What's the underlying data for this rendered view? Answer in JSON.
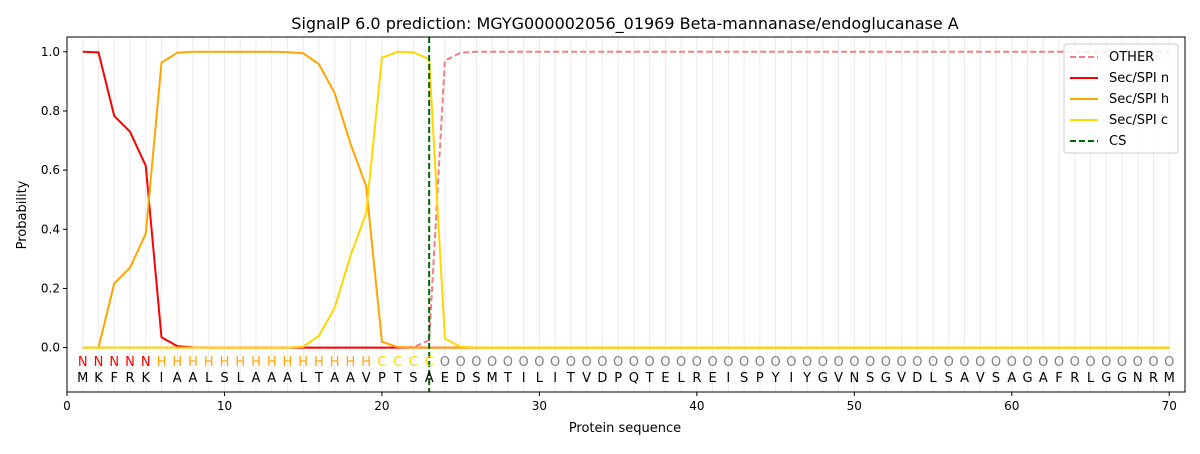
{
  "chart_data": {
    "type": "line",
    "title": "SignalP 6.0 prediction: MGYG000002056_01969 Beta-mannanase/endoglucanase A",
    "xlabel": "Protein sequence",
    "ylabel": "Probability",
    "xlim": [
      0,
      71
    ],
    "ylim": [
      -0.15,
      1.05
    ],
    "xticks": [
      0,
      10,
      20,
      30,
      40,
      50,
      60,
      70
    ],
    "yticks": [
      "0.0",
      "0.2",
      "0.4",
      "0.6",
      "0.8",
      "1.0"
    ],
    "legend_position": "top-right",
    "sequence": [
      "M",
      "K",
      "F",
      "R",
      "K",
      "I",
      "A",
      "A",
      "L",
      "S",
      "L",
      "A",
      "A",
      "A",
      "L",
      "T",
      "A",
      "A",
      "V",
      "P",
      "T",
      "S",
      "A",
      "E",
      "D",
      "S",
      "M",
      "T",
      "I",
      "L",
      "I",
      "T",
      "V",
      "D",
      "P",
      "Q",
      "T",
      "E",
      "L",
      "R",
      "E",
      "I",
      "S",
      "P",
      "Y",
      "I",
      "Y",
      "G",
      "V",
      "N",
      "S",
      "G",
      "V",
      "D",
      "L",
      "S",
      "A",
      "V",
      "S",
      "A",
      "G",
      "A",
      "F",
      "R",
      "L",
      "G",
      "G",
      "N",
      "R",
      "M"
    ],
    "region_labels": [
      "N",
      "N",
      "N",
      "N",
      "N",
      "H",
      "H",
      "H",
      "H",
      "H",
      "H",
      "H",
      "H",
      "H",
      "H",
      "H",
      "H",
      "H",
      "H",
      "C",
      "C",
      "C",
      "C",
      "O",
      "O",
      "O",
      "O",
      "O",
      "O",
      "O",
      "O",
      "O",
      "O",
      "O",
      "O",
      "O",
      "O",
      "O",
      "O",
      "O",
      "O",
      "O",
      "O",
      "O",
      "O",
      "O",
      "O",
      "O",
      "O",
      "O",
      "O",
      "O",
      "O",
      "O",
      "O",
      "O",
      "O",
      "O",
      "O",
      "O",
      "O",
      "O",
      "O",
      "O",
      "O",
      "O",
      "O",
      "O",
      "O",
      "O"
    ],
    "label_colors": {
      "N": "#ff0000",
      "H": "#ffa500",
      "C": "#ffd700",
      "O": "#808080"
    },
    "cleavage_site": 23,
    "series": [
      {
        "name": "OTHER",
        "color": "#f08080",
        "dash": true,
        "values": [
          0,
          0,
          0,
          0,
          0,
          0,
          0,
          0,
          0,
          0,
          0,
          0,
          0,
          0,
          0,
          0,
          0,
          0,
          0,
          0,
          0,
          0.002,
          0.025,
          0.97,
          0.997,
          1,
          1,
          1,
          1,
          1,
          1,
          1,
          1,
          1,
          1,
          1,
          1,
          1,
          1,
          1,
          1,
          1,
          1,
          1,
          1,
          1,
          1,
          1,
          1,
          1,
          1,
          1,
          1,
          1,
          1,
          1,
          1,
          1,
          1,
          1,
          1,
          1,
          1,
          1,
          1,
          1,
          1,
          1,
          1,
          1
        ]
      },
      {
        "name": "Sec/SPI n",
        "color": "#ff0000",
        "values": [
          1.0,
          0.998,
          0.783,
          0.73,
          0.615,
          0.035,
          0.005,
          0.001,
          0,
          0,
          0,
          0,
          0,
          0,
          0,
          0,
          0,
          0,
          0,
          0,
          0,
          0,
          0,
          0,
          0,
          0,
          0,
          0,
          0,
          0,
          0,
          0,
          0,
          0,
          0,
          0,
          0,
          0,
          0,
          0,
          0,
          0,
          0,
          0,
          0,
          0,
          0,
          0,
          0,
          0,
          0,
          0,
          0,
          0,
          0,
          0,
          0,
          0,
          0,
          0,
          0,
          0,
          0,
          0,
          0,
          0,
          0,
          0,
          0,
          0
        ]
      },
      {
        "name": "Sec/SPI h",
        "color": "#ffa500",
        "values": [
          0,
          0,
          0.217,
          0.27,
          0.385,
          0.963,
          0.997,
          1,
          1,
          1,
          1,
          1,
          1,
          0.999,
          0.995,
          0.958,
          0.86,
          0.69,
          0.545,
          0.02,
          0.002,
          0,
          0,
          0,
          0,
          0,
          0,
          0,
          0,
          0,
          0,
          0,
          0,
          0,
          0,
          0,
          0,
          0,
          0,
          0,
          0,
          0,
          0,
          0,
          0,
          0,
          0,
          0,
          0,
          0,
          0,
          0,
          0,
          0,
          0,
          0,
          0,
          0,
          0,
          0,
          0,
          0,
          0,
          0,
          0,
          0,
          0,
          0,
          0,
          0
        ]
      },
      {
        "name": "Sec/SPI c",
        "color": "#ffd700",
        "values": [
          0,
          0,
          0,
          0,
          0,
          0,
          0,
          0,
          0,
          0,
          0,
          0,
          0,
          0,
          0.003,
          0.04,
          0.135,
          0.31,
          0.455,
          0.98,
          1.0,
          0.998,
          0.975,
          0.03,
          0.003,
          0,
          0,
          0,
          0,
          0,
          0,
          0,
          0,
          0,
          0,
          0,
          0,
          0,
          0,
          0,
          0,
          0,
          0,
          0,
          0,
          0,
          0,
          0,
          0,
          0,
          0,
          0,
          0,
          0,
          0,
          0,
          0,
          0,
          0,
          0,
          0,
          0,
          0,
          0,
          0,
          0,
          0,
          0,
          0,
          0
        ]
      },
      {
        "name": "CS",
        "color": "#006400",
        "dash": true,
        "vertical": true
      }
    ]
  }
}
